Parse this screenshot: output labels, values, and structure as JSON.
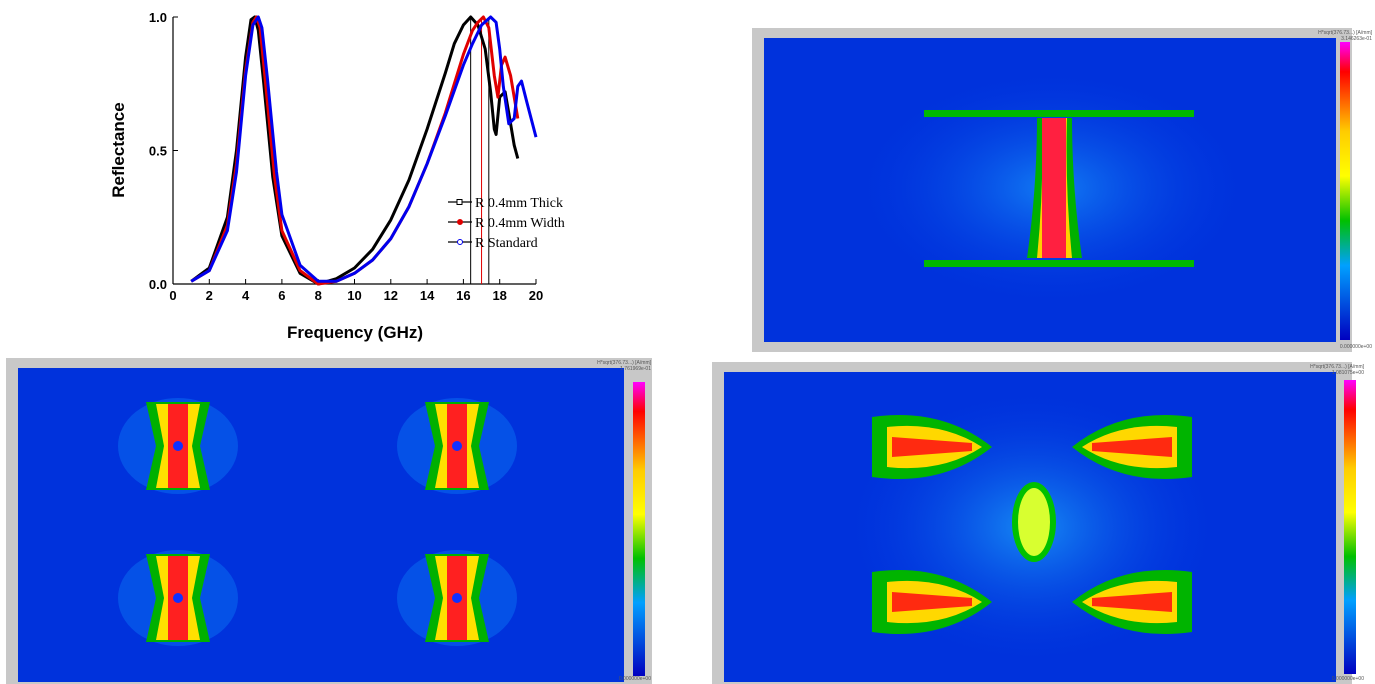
{
  "chart_data": {
    "type": "line",
    "title": "",
    "xlabel": "Frequency (GHz)",
    "ylabel": "Reflectance",
    "xlim": [
      0,
      20
    ],
    "ylim": [
      0,
      1.0
    ],
    "xticks": [
      "0",
      "2",
      "4",
      "6",
      "8",
      "10",
      "12",
      "14",
      "16",
      "18",
      "20"
    ],
    "yticks": [
      "0.0",
      "0.5",
      "1.0"
    ],
    "grid": false,
    "legend_position": "right-center",
    "series": [
      {
        "name": "0.4mm Thick",
        "legend_prefix": "R",
        "color": "#000000",
        "marker": "square-hollow",
        "x": [
          1,
          2,
          3,
          3.5,
          4,
          4.3,
          4.5,
          4.7,
          5,
          5.5,
          6,
          7,
          8,
          9,
          10,
          11,
          12,
          13,
          14,
          15,
          15.5,
          16,
          16.4,
          16.8,
          17.2,
          17.5,
          17.7,
          17.8,
          18,
          18.3,
          18.5,
          18.8,
          19
        ],
        "y": [
          0.01,
          0.06,
          0.25,
          0.5,
          0.85,
          0.99,
          1.0,
          0.95,
          0.75,
          0.4,
          0.18,
          0.04,
          0.0,
          0.02,
          0.06,
          0.13,
          0.24,
          0.39,
          0.58,
          0.79,
          0.9,
          0.97,
          1.0,
          0.97,
          0.88,
          0.72,
          0.58,
          0.56,
          0.7,
          0.72,
          0.64,
          0.52,
          0.47
        ]
      },
      {
        "name": "0.4mm Width",
        "legend_prefix": "R",
        "color": "#e00000",
        "marker": "circle-filled",
        "x": [
          1,
          2,
          3,
          3.5,
          4,
          4.4,
          4.6,
          4.8,
          5.1,
          5.6,
          6,
          7,
          8,
          9,
          10,
          11,
          12,
          13,
          14,
          15,
          15.5,
          16,
          16.5,
          16.8,
          17.1,
          17.4,
          17.7,
          17.9,
          18.1,
          18.3,
          18.6,
          18.9,
          19
        ],
        "y": [
          0.01,
          0.05,
          0.22,
          0.45,
          0.8,
          0.98,
          1.0,
          0.96,
          0.75,
          0.4,
          0.2,
          0.05,
          0.0,
          0.01,
          0.04,
          0.09,
          0.17,
          0.29,
          0.45,
          0.64,
          0.75,
          0.86,
          0.95,
          0.98,
          1.0,
          0.96,
          0.78,
          0.7,
          0.82,
          0.85,
          0.78,
          0.66,
          0.62
        ]
      },
      {
        "name": "Standard",
        "legend_prefix": "R",
        "color": "#0000ee",
        "marker": "circle-hollow",
        "x": [
          1,
          2,
          3,
          3.5,
          4,
          4.4,
          4.7,
          4.9,
          5.2,
          5.7,
          6,
          7,
          8,
          9,
          10,
          11,
          12,
          13,
          14,
          15,
          16,
          16.5,
          17,
          17.5,
          17.8,
          18,
          18.2,
          18.5,
          18.8,
          19,
          19.2,
          19.5,
          20
        ],
        "y": [
          0.01,
          0.05,
          0.2,
          0.42,
          0.78,
          0.97,
          1.0,
          0.96,
          0.77,
          0.42,
          0.26,
          0.07,
          0.01,
          0.01,
          0.04,
          0.09,
          0.17,
          0.29,
          0.45,
          0.63,
          0.82,
          0.9,
          0.97,
          1.0,
          0.98,
          0.88,
          0.74,
          0.6,
          0.62,
          0.74,
          0.76,
          0.68,
          0.55
        ]
      }
    ],
    "vertical_markers": [
      {
        "x": 16.4,
        "color": "#000000"
      },
      {
        "x": 17.0,
        "color": "#e00000"
      },
      {
        "x": 17.4,
        "color": "#000000"
      }
    ]
  },
  "field_plots": [
    {
      "id": "field-single-unit",
      "scale_label": "H*sqrt(376.73...) [A/mm]",
      "max_label": "3.146263e-01",
      "min_label": "0.000000e+00"
    },
    {
      "id": "field-four-units",
      "scale_label": "H*sqrt(376.73...) [A/mm]",
      "max_label": "1.761969e-01",
      "min_label": "0.000000e+00"
    },
    {
      "id": "field-coupled",
      "scale_label": "H*sqrt(376.73...) [A/mm]",
      "max_label": "1.081075e+00",
      "min_label": "0.000000e+00"
    }
  ]
}
